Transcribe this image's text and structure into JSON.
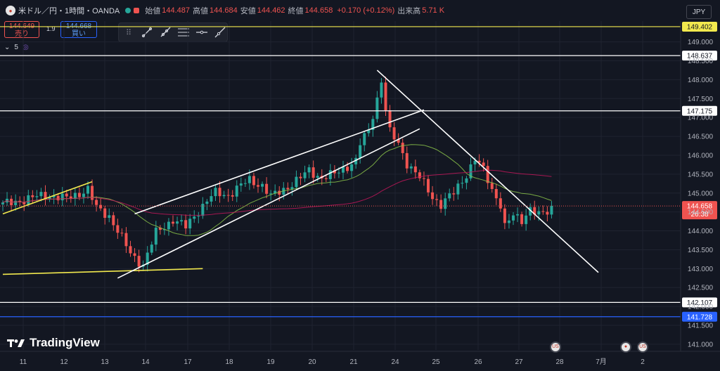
{
  "header": {
    "symbol": "米ドル／円・1時間・OANDA",
    "open_label": "始値",
    "open": "144.487",
    "high_label": "高値",
    "high": "144.684",
    "low_label": "安値",
    "low": "144.462",
    "close_label": "終値",
    "close": "144.658",
    "change": "+0.170 (+0.12%)",
    "volume_label": "出来高",
    "volume": "5.71 K"
  },
  "currency": "JPY",
  "trade": {
    "sell_price": "144.649",
    "sell_label": "売り",
    "spread": "1.9",
    "buy_price": "144.668",
    "buy_label": "買い"
  },
  "indicator_count": "5",
  "brand": "TradingView",
  "chart_data": {
    "type": "candlestick",
    "x_ticks": [
      "11",
      "12",
      "13",
      "14",
      "17",
      "18",
      "19",
      "20",
      "21",
      "24",
      "25",
      "26",
      "27",
      "28",
      "7月",
      "2"
    ],
    "y_ticks": [
      "141.000",
      "141.500",
      "142.000",
      "142.500",
      "143.000",
      "143.500",
      "144.000",
      "144.500",
      "145.000",
      "145.500",
      "146.000",
      "146.500",
      "147.000",
      "147.500",
      "148.000",
      "148.500",
      "149.000"
    ],
    "ylim": [
      140.85,
      149.55
    ],
    "price_path": [
      [
        0,
        144.7
      ],
      [
        10,
        144.95
      ],
      [
        15,
        144.85
      ],
      [
        20,
        145.1
      ],
      [
        22,
        144.6
      ],
      [
        25,
        144.4
      ],
      [
        28,
        143.8
      ],
      [
        30,
        143.4
      ],
      [
        33,
        143.1
      ],
      [
        36,
        143.95
      ],
      [
        40,
        144.3
      ],
      [
        43,
        144.1
      ],
      [
        45,
        144.4
      ],
      [
        48,
        144.8
      ],
      [
        50,
        145.0
      ],
      [
        53,
        144.95
      ],
      [
        56,
        145.2
      ],
      [
        58,
        145.35
      ],
      [
        61,
        145.2
      ],
      [
        63,
        144.9
      ],
      [
        66,
        145.1
      ],
      [
        70,
        145.4
      ],
      [
        72,
        145.6
      ],
      [
        75,
        145.4
      ],
      [
        78,
        145.5
      ],
      [
        80,
        145.65
      ],
      [
        83,
        145.85
      ],
      [
        84,
        146.3
      ],
      [
        86,
        146.65
      ],
      [
        88,
        147.5
      ],
      [
        89,
        148.0
      ],
      [
        90,
        147.2
      ],
      [
        91,
        146.6
      ],
      [
        93,
        146.3
      ],
      [
        95,
        145.8
      ],
      [
        98,
        145.4
      ],
      [
        101,
        144.9
      ],
      [
        103,
        144.7
      ],
      [
        106,
        145.0
      ],
      [
        109,
        145.5
      ],
      [
        111,
        145.9
      ],
      [
        113,
        145.6
      ],
      [
        115,
        145.1
      ],
      [
        117,
        144.7
      ],
      [
        118,
        144.1
      ],
      [
        120,
        144.4
      ],
      [
        122,
        144.3
      ],
      [
        124,
        144.6
      ],
      [
        126,
        144.4
      ],
      [
        128,
        144.5
      ],
      [
        129,
        144.66
      ]
    ],
    "horizontal_levels": [
      {
        "value": "149.402",
        "color": "#f2e94e"
      },
      {
        "value": "148.637",
        "color": "#ffffff"
      },
      {
        "value": "147.175",
        "color": "#ffffff"
      },
      {
        "value": "142.107",
        "color": "#ffffff"
      },
      {
        "value": "141.728",
        "color": "#2962ff"
      }
    ],
    "current_price": "144.658",
    "countdown": "26:38",
    "trendlines": [
      {
        "color": "#f2e94e",
        "from": [
          0,
          144.45
        ],
        "to": [
          21,
          145.3
        ]
      },
      {
        "color": "#f2e94e",
        "from": [
          0,
          142.85
        ],
        "to": [
          47,
          143.0
        ]
      },
      {
        "color": "#ffffff",
        "from": [
          31,
          144.45
        ],
        "to": [
          99,
          147.2
        ]
      },
      {
        "color": "#ffffff",
        "from": [
          27,
          142.75
        ],
        "to": [
          98,
          146.7
        ]
      },
      {
        "color": "#ffffff",
        "from": [
          88,
          148.25
        ],
        "to": [
          140,
          142.9
        ]
      }
    ]
  }
}
